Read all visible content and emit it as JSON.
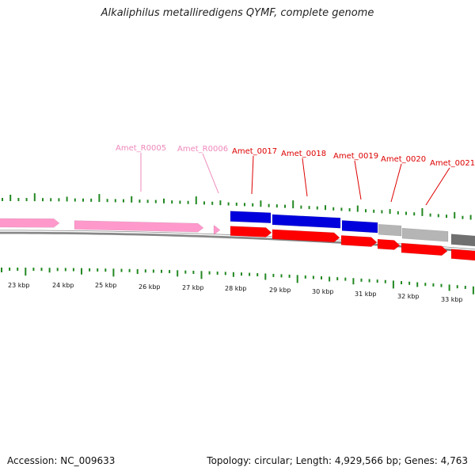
{
  "title": "Alkaliphilus metalliredigens QYMF, complete genome",
  "accession": {
    "label": "Accession:",
    "value": "NC_009633"
  },
  "summary": {
    "topology_label": "Topology:",
    "topology": "circular",
    "length_label": "Length:",
    "length": "4,929,566 bp",
    "genes_label": "Genes:",
    "genes": "4,763"
  },
  "colors": {
    "rna_feature": "#ff99cc",
    "rna_label": "#ee88bb",
    "cds": "#ff0000",
    "cds_label": "#dd0000",
    "cog_blue": "#0000dd",
    "cog_light_gray": "#b5b5b5",
    "cog_dark_gray": "#707070",
    "gc_skew_ticks": "#228822",
    "backbone": "#888888"
  },
  "scale_labels": [
    "23 kbp",
    "24 kbp",
    "25 kbp",
    "26 kbp",
    "27 kbp",
    "28 kbp",
    "29 kbp",
    "30 kbp",
    "31 kbp",
    "32 kbp",
    "33 kbp"
  ],
  "gene_labels": [
    {
      "text": "Amet_R0005",
      "type": "rna"
    },
    {
      "text": "Amet_R0006",
      "type": "rna"
    },
    {
      "text": "Amet_0017",
      "type": "cds"
    },
    {
      "text": "Amet_0018",
      "type": "cds"
    },
    {
      "text": "Amet_0019",
      "type": "cds"
    },
    {
      "text": "Amet_0020",
      "type": "cds"
    },
    {
      "text": "Amet_0021",
      "type": "cds"
    }
  ]
}
